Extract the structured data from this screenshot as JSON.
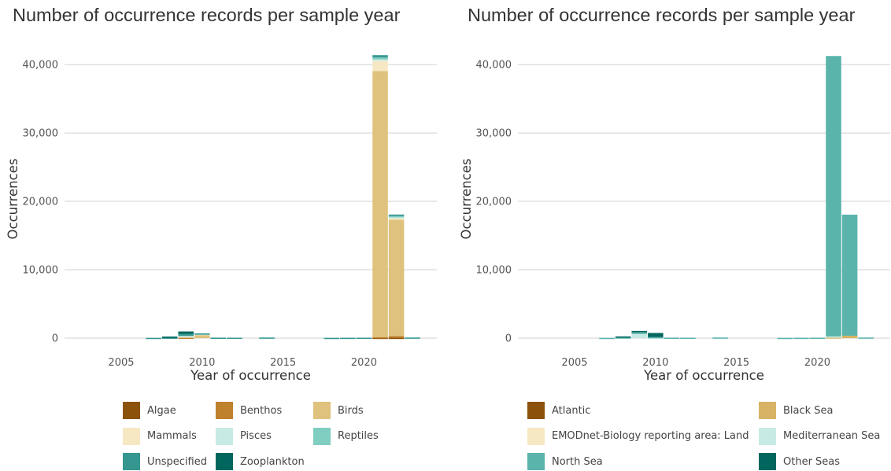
{
  "chart_data": [
    {
      "type": "bar",
      "stacked": true,
      "title": "Number of occurrence records per sample year",
      "xlabel": "Year of occurrence",
      "ylabel": "Occurrences",
      "xlim": [
        2001.5,
        2024.5
      ],
      "ylim": [
        0,
        43000
      ],
      "xticks": [
        2005,
        2010,
        2015,
        2020
      ],
      "yticks": [
        0,
        10000,
        20000,
        30000,
        40000
      ],
      "ytick_labels": [
        "0",
        "10,000",
        "20,000",
        "30,000",
        "40,000"
      ],
      "grid": "horizontal",
      "legend_position": "bottom",
      "x": [
        2002,
        2003,
        2004,
        2005,
        2006,
        2007,
        2008,
        2009,
        2010,
        2011,
        2012,
        2013,
        2014,
        2015,
        2016,
        2017,
        2018,
        2019,
        2020,
        2021,
        2022,
        2023
      ],
      "series": [
        {
          "name": "Algae",
          "color": "#8c510a",
          "values": [
            0,
            0,
            0,
            0,
            0,
            0,
            0,
            0,
            0,
            0,
            0,
            0,
            0,
            0,
            0,
            0,
            0,
            0,
            0,
            50,
            50,
            0
          ]
        },
        {
          "name": "Benthos",
          "color": "#bf812d",
          "values": [
            0,
            0,
            0,
            0,
            0,
            0,
            0,
            60,
            0,
            0,
            0,
            0,
            0,
            0,
            0,
            0,
            0,
            0,
            0,
            100,
            250,
            0
          ]
        },
        {
          "name": "Birds",
          "color": "#dfc27d",
          "values": [
            0,
            0,
            0,
            0,
            0,
            0,
            0,
            150,
            550,
            0,
            0,
            0,
            0,
            0,
            0,
            0,
            0,
            0,
            0,
            38900,
            17000,
            0
          ]
        },
        {
          "name": "Mammals",
          "color": "#f6e8c3",
          "values": [
            0,
            0,
            0,
            0,
            0,
            0,
            0,
            50,
            50,
            0,
            0,
            0,
            0,
            0,
            0,
            0,
            0,
            0,
            0,
            1500,
            300,
            0
          ]
        },
        {
          "name": "Pisces",
          "color": "#c7eae5",
          "values": [
            0,
            0,
            0,
            0,
            0,
            0,
            0,
            60,
            30,
            0,
            0,
            0,
            0,
            0,
            0,
            0,
            0,
            0,
            0,
            200,
            100,
            0
          ]
        },
        {
          "name": "Reptiles",
          "color": "#80cdc1",
          "values": [
            0,
            0,
            0,
            0,
            0,
            0,
            0,
            0,
            0,
            0,
            0,
            0,
            0,
            0,
            0,
            0,
            0,
            0,
            0,
            300,
            150,
            0
          ]
        },
        {
          "name": "Unspecified",
          "color": "#35978f",
          "values": [
            0,
            0,
            0,
            0,
            0,
            40,
            80,
            300,
            60,
            70,
            60,
            0,
            90,
            0,
            0,
            0,
            40,
            50,
            60,
            320,
            220,
            90
          ]
        },
        {
          "name": "Zooplankton",
          "color": "#01665e",
          "values": [
            0,
            0,
            0,
            0,
            0,
            0,
            150,
            350,
            0,
            0,
            0,
            0,
            0,
            0,
            0,
            0,
            0,
            0,
            0,
            0,
            0,
            0
          ]
        }
      ]
    },
    {
      "type": "bar",
      "stacked": true,
      "title": "Number of occurrence records per sample year",
      "xlabel": "Year of occurrence",
      "ylabel": "Occurrences",
      "xlim": [
        2001.5,
        2024.5
      ],
      "ylim": [
        0,
        43000
      ],
      "xticks": [
        2005,
        2010,
        2015,
        2020
      ],
      "yticks": [
        0,
        10000,
        20000,
        30000,
        40000
      ],
      "ytick_labels": [
        "0",
        "10,000",
        "20,000",
        "30,000",
        "40,000"
      ],
      "grid": "horizontal",
      "legend_position": "bottom",
      "x": [
        2002,
        2003,
        2004,
        2005,
        2006,
        2007,
        2008,
        2009,
        2010,
        2011,
        2012,
        2013,
        2014,
        2015,
        2016,
        2017,
        2018,
        2019,
        2020,
        2021,
        2022,
        2023
      ],
      "series": [
        {
          "name": "Atlantic",
          "color": "#8c510a",
          "values": [
            0,
            0,
            0,
            0,
            0,
            0,
            0,
            0,
            0,
            0,
            0,
            0,
            0,
            0,
            0,
            0,
            0,
            0,
            0,
            0,
            0,
            0
          ]
        },
        {
          "name": "Black Sea",
          "color": "#d8b365",
          "values": [
            0,
            0,
            0,
            0,
            0,
            0,
            0,
            0,
            0,
            0,
            0,
            0,
            0,
            0,
            0,
            0,
            0,
            0,
            0,
            100,
            350,
            0
          ]
        },
        {
          "name": "EMODnet-Biology reporting area: Land",
          "color": "#f6e8c3",
          "values": [
            0,
            0,
            0,
            0,
            0,
            0,
            0,
            0,
            0,
            0,
            0,
            0,
            0,
            0,
            0,
            0,
            0,
            0,
            0,
            0,
            0,
            0
          ]
        },
        {
          "name": "Mediterranean Sea",
          "color": "#c7eae5",
          "values": [
            0,
            0,
            0,
            0,
            0,
            0,
            0,
            600,
            100,
            0,
            0,
            0,
            0,
            0,
            0,
            0,
            0,
            0,
            0,
            150,
            0,
            0
          ]
        },
        {
          "name": "North Sea",
          "color": "#5ab4ac",
          "values": [
            0,
            0,
            0,
            0,
            0,
            40,
            100,
            250,
            50,
            70,
            60,
            0,
            90,
            0,
            0,
            0,
            40,
            50,
            60,
            41000,
            17700,
            90
          ]
        },
        {
          "name": "Other Seas",
          "color": "#01665e",
          "values": [
            0,
            0,
            0,
            0,
            0,
            0,
            150,
            200,
            600,
            0,
            0,
            0,
            0,
            0,
            0,
            0,
            0,
            0,
            0,
            0,
            0,
            0
          ]
        }
      ]
    }
  ]
}
